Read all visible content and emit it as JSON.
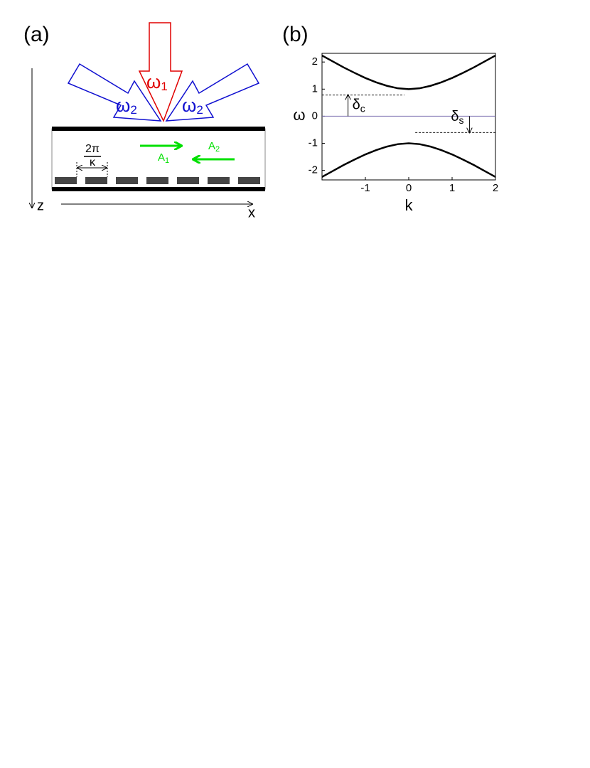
{
  "diagram": {
    "label": "(a)",
    "pump": {
      "symbol": "ω",
      "sub": "1"
    },
    "probes": [
      {
        "symbol": "ω",
        "sub": "2"
      },
      {
        "symbol": "ω",
        "sub": "2"
      }
    ],
    "period": {
      "num": "2π",
      "den": "κ"
    },
    "waves": [
      {
        "symbol": "A",
        "sub": "1"
      },
      {
        "symbol": "A",
        "sub": "2"
      }
    ],
    "axes": {
      "z": "z",
      "x": "x"
    }
  },
  "chart_data": {
    "type": "line",
    "label": "(b)",
    "xlabel": "k",
    "ylabel": "ω",
    "x": [
      -2,
      -1.75,
      -1.5,
      -1.25,
      -1,
      -0.75,
      -0.5,
      -0.25,
      0,
      0.25,
      0.5,
      0.75,
      1,
      1.25,
      1.5,
      1.75,
      2
    ],
    "series": [
      {
        "color": "#000000",
        "values": [
          2.24,
          2.02,
          1.8,
          1.6,
          1.41,
          1.25,
          1.12,
          1.03,
          1,
          1.03,
          1.12,
          1.25,
          1.41,
          1.6,
          1.8,
          2.02,
          2.24
        ]
      },
      {
        "color": "#000000",
        "values": [
          -2.24,
          -2.02,
          -1.8,
          -1.6,
          -1.41,
          -1.25,
          -1.12,
          -1.03,
          -1,
          -1.03,
          -1.12,
          -1.25,
          -1.41,
          -1.6,
          -1.8,
          -2.02,
          -2.24
        ]
      }
    ],
    "xlim": [
      -2,
      2
    ],
    "ylim": [
      -2.35,
      2.32
    ],
    "xticks": [
      -1,
      0,
      1,
      2
    ],
    "yticks": [
      -2,
      -1,
      0,
      1,
      2
    ],
    "zero_line": {
      "y": 0,
      "color": "#7b6fb0"
    },
    "annotations": [
      {
        "symbol": "δ",
        "sub": "c",
        "k": -1.4,
        "from": 0,
        "to": 0.78,
        "line_x": [
          -2,
          -0.1
        ]
      },
      {
        "symbol": "δ",
        "sub": "s",
        "k": 1.4,
        "from": 0,
        "to": -0.6,
        "line_x": [
          0.15,
          2
        ]
      }
    ]
  }
}
